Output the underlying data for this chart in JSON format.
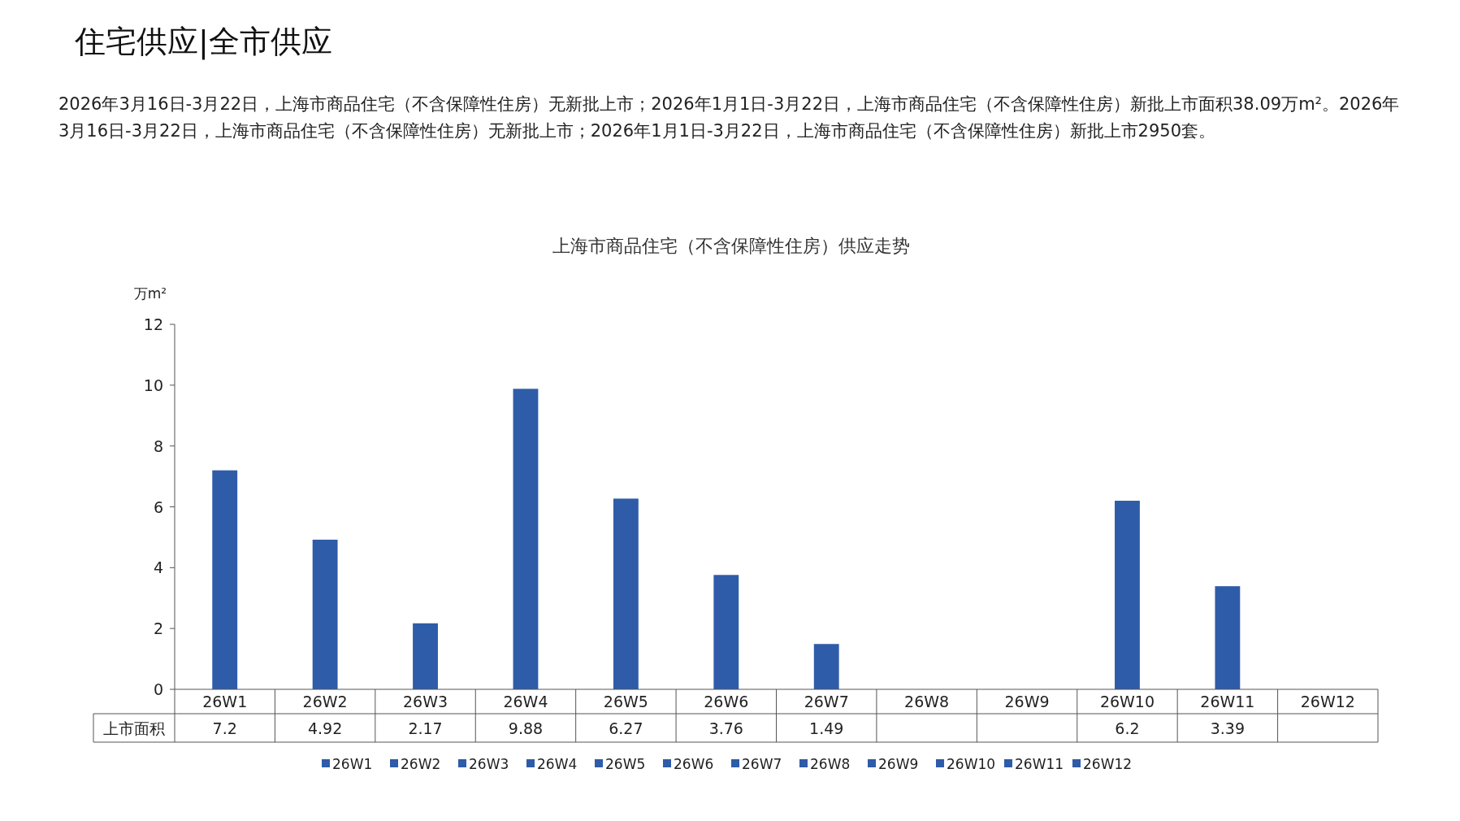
{
  "chart_data": {
    "type": "bar",
    "title": "住宅供应|全市供应",
    "subtitle": "上海市商品住宅（不含保障性住房）供应走势",
    "annotations": [
      "2026年3月16日-3月22日，上海市商品住宅（不含保障性住房）无新批上市；2026年1月1日-3月22日，上海市商品住宅（不含保障性住房）新批上市面积38.09万m²。2026年3月16日-3月22日，上海市商品住宅（不含保障性住房）无新批上市；2026年1月1日-3月22日，上海市商品住宅（不含保障性住房）新批上市2950套。"
    ],
    "ylabel": "万m²",
    "ylim": [
      0,
      12
    ],
    "yticks": [
      0,
      2,
      4,
      6,
      8,
      10,
      12
    ],
    "categories": [
      "26W1",
      "26W2",
      "26W3",
      "26W4",
      "26W5",
      "26W6",
      "26W7",
      "26W8",
      "26W9",
      "26W10",
      "26W11",
      "26W12"
    ],
    "series": [
      {
        "name": "上市面积",
        "color": "#2e5ca8",
        "values": [
          7.2,
          4.92,
          2.17,
          9.88,
          6.27,
          3.76,
          1.49,
          null,
          null,
          6.2,
          3.39,
          null
        ]
      }
    ],
    "data_labels": true,
    "legend": "bottom"
  }
}
